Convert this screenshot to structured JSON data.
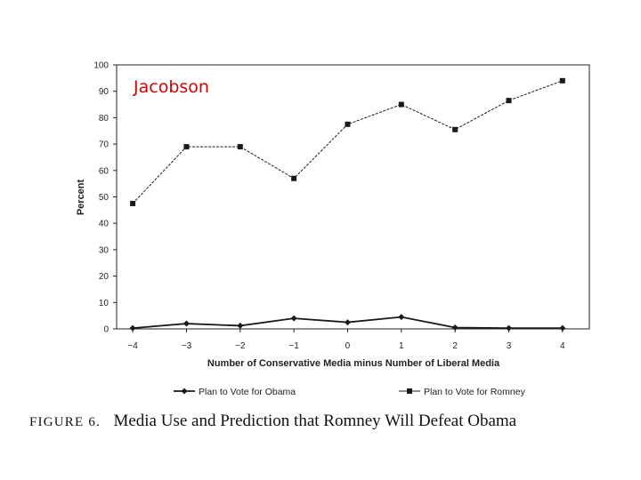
{
  "slide_label": "Jacobson",
  "colors": {
    "slide_label": "#d40000",
    "line": "#1a1a1a",
    "axis": "#222222"
  },
  "caption": {
    "prefix": "FIGURE 6.",
    "text": "Media Use and Prediction that Romney Will Defeat Obama"
  },
  "chart_data": {
    "type": "line",
    "title": "",
    "xlabel": "Number of Conservative Media minus Number of Liberal Media",
    "ylabel": "Percent",
    "x": [
      -4,
      -3,
      -2,
      -1,
      0,
      1,
      2,
      3,
      4
    ],
    "x_tick_labels": [
      "−4",
      "−3",
      "−2",
      "−1",
      "0",
      "1",
      "2",
      "3",
      "4"
    ],
    "xlim": [
      -4.3,
      4.5
    ],
    "ylim": [
      0,
      100
    ],
    "y_ticks": [
      0,
      10,
      20,
      30,
      40,
      50,
      60,
      70,
      80,
      90,
      100
    ],
    "grid": false,
    "legend_position": "bottom",
    "series": [
      {
        "name": "Plan to Vote for Obama",
        "marker": "diamond",
        "values": [
          0.3,
          2,
          1.2,
          4,
          2.5,
          4.5,
          0.5,
          0.3,
          0.3
        ]
      },
      {
        "name": "Plan to Vote for Romney",
        "marker": "square",
        "values": [
          47.5,
          69,
          69,
          57,
          77.5,
          85,
          75.5,
          86.5,
          94
        ]
      }
    ]
  }
}
